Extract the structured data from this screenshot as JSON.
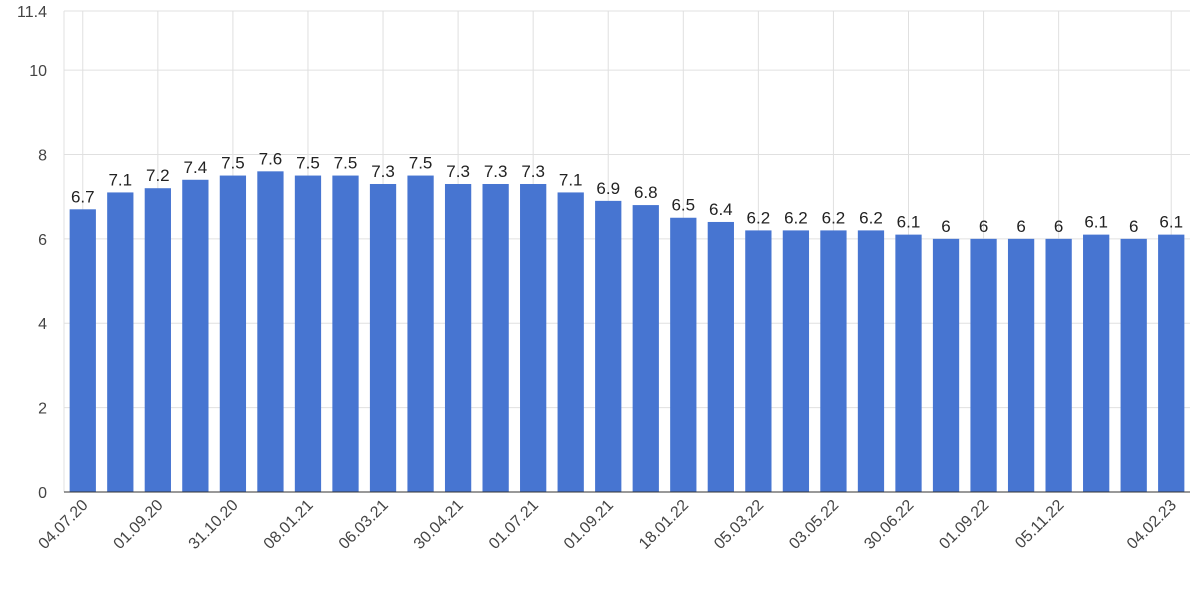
{
  "chart_data": {
    "type": "bar",
    "title": "",
    "xlabel": "",
    "ylabel": "",
    "ylim": [
      0,
      11.4
    ],
    "y_ticks": [
      0,
      2,
      4,
      6,
      8,
      10,
      11.4
    ],
    "grid": true,
    "bar_color": "#4775d1",
    "categories": [
      "04.07.20",
      "",
      "01.09.20",
      "",
      "31.10.20",
      "",
      "08.01.21",
      "",
      "06.03.21",
      "",
      "30.04.21",
      "",
      "01.07.21",
      "",
      "01.09.21",
      "",
      "18.01.22",
      "",
      "05.03.22",
      "",
      "03.05.22",
      "",
      "30.06.22",
      "",
      "01.09.22",
      "",
      "05.11.22",
      "",
      "",
      "04.02.23"
    ],
    "values": [
      6.7,
      7.1,
      7.2,
      7.4,
      7.5,
      7.6,
      7.5,
      7.5,
      7.3,
      7.5,
      7.3,
      7.3,
      7.3,
      7.1,
      6.9,
      6.8,
      6.5,
      6.4,
      6.2,
      6.2,
      6.2,
      6.2,
      6.1,
      6,
      6,
      6,
      6,
      6.1,
      6,
      6.1
    ]
  }
}
